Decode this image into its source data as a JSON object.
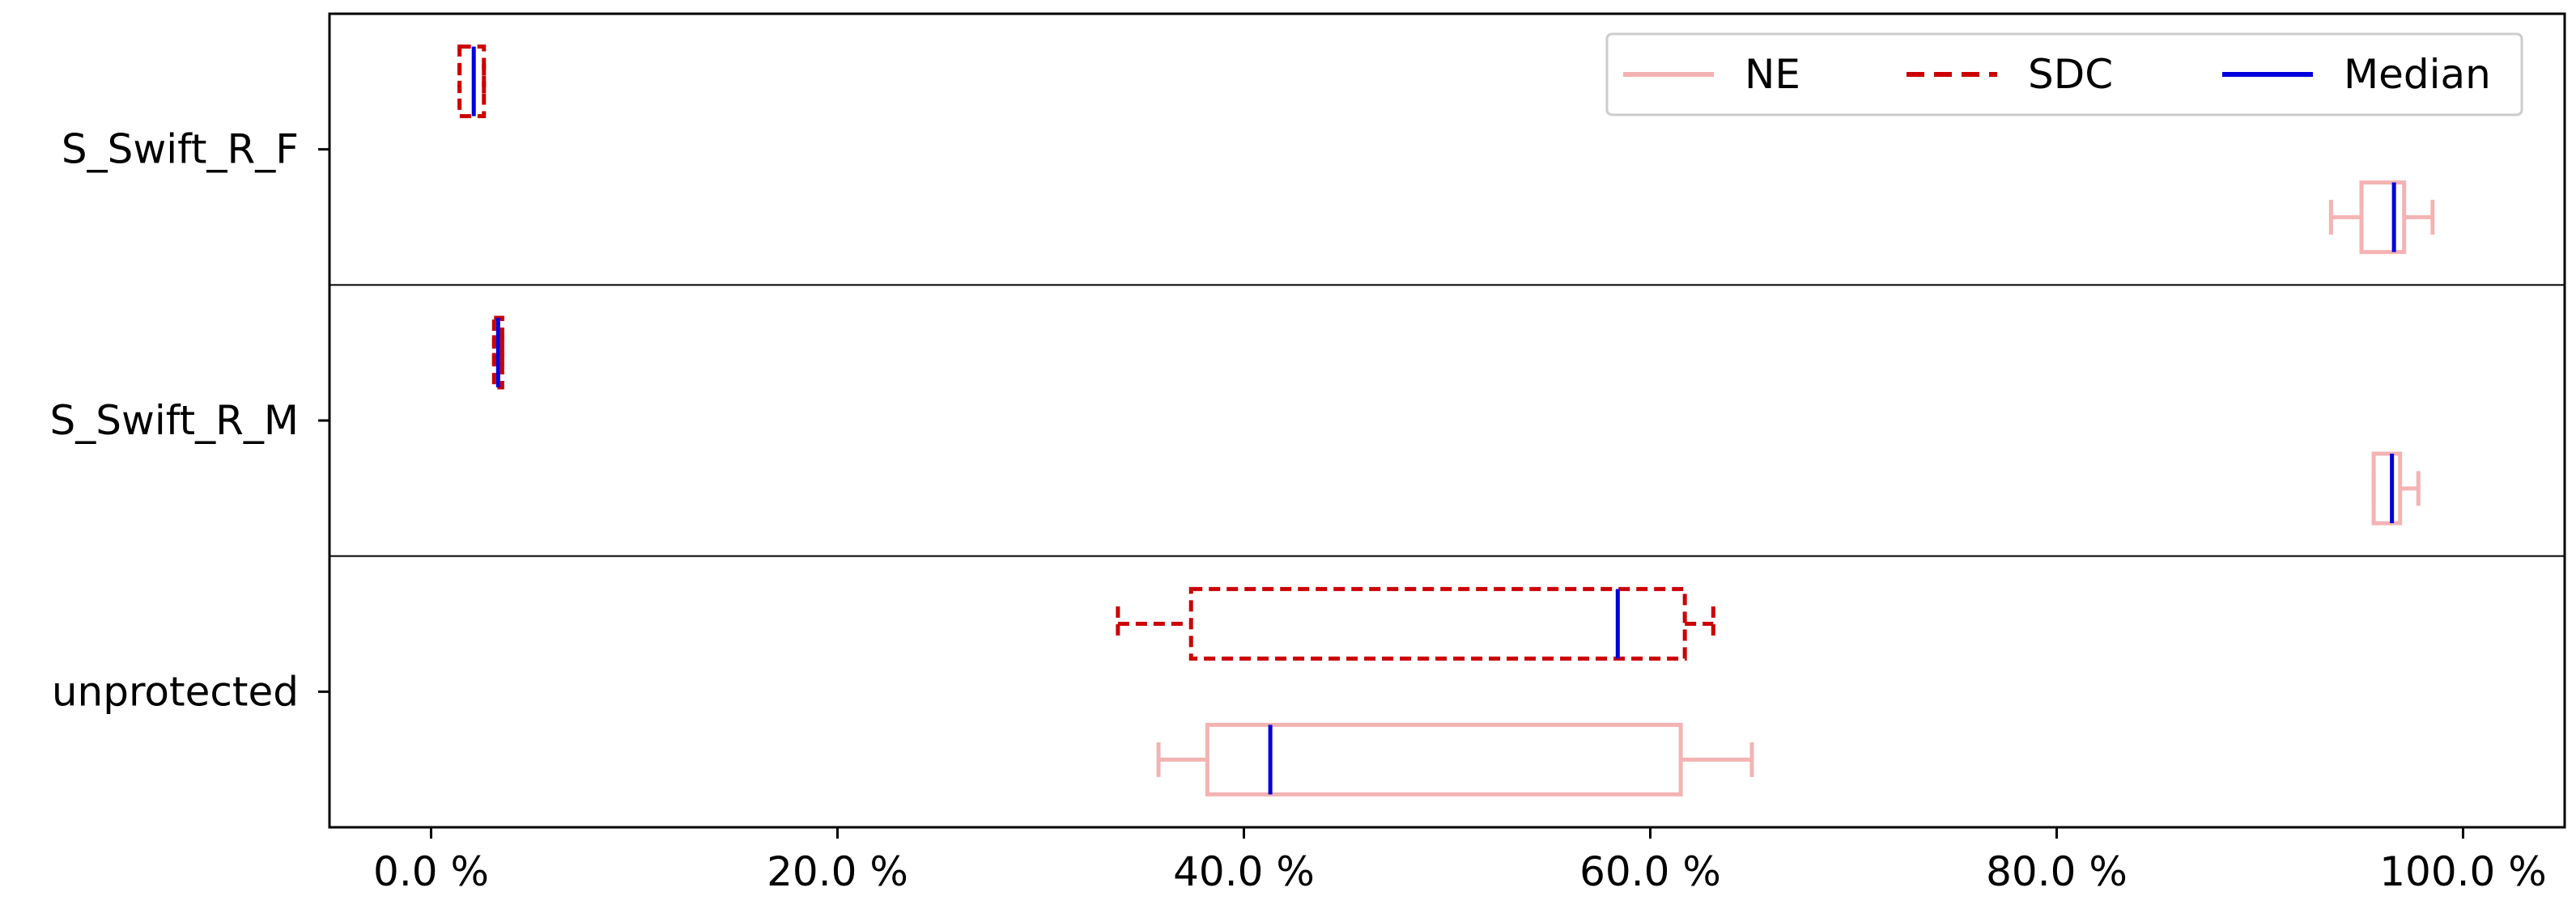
{
  "chart_data": {
    "type": "boxplot",
    "orientation": "horizontal",
    "title": "",
    "xlabel": "",
    "ylabel": "",
    "xlim": [
      -5,
      105
    ],
    "x_ticks": [
      0,
      20,
      40,
      60,
      80,
      100
    ],
    "x_tick_labels": [
      "0.0 %",
      "20.0 %",
      "40.0 %",
      "60.0 %",
      "80.0 %",
      "100.0 %"
    ],
    "categories": [
      "S_Swift_R_F",
      "S_Swift_R_M",
      "unprotected"
    ],
    "legend": {
      "position": "top-right",
      "entries": [
        {
          "label": "NE",
          "color": "#f4b3b3",
          "style": "solid"
        },
        {
          "label": "SDC",
          "color": "#cc0000",
          "style": "dashed"
        },
        {
          "label": "Median",
          "color": "#0000dd",
          "style": "solid"
        }
      ]
    },
    "series": [
      {
        "name": "NE",
        "color": "#f4b3b3",
        "style": "solid",
        "boxes": [
          {
            "category": "S_Swift_R_F",
            "whisker_low": 93.5,
            "q1": 95.0,
            "median": 96.6,
            "q3": 97.1,
            "whisker_high": 98.5
          },
          {
            "category": "S_Swift_R_M",
            "whisker_low": 95.6,
            "q1": 95.6,
            "median": 96.5,
            "q3": 96.9,
            "whisker_high": 97.8
          },
          {
            "category": "unprotected",
            "whisker_low": 35.8,
            "q1": 38.2,
            "median": 41.3,
            "q3": 61.5,
            "whisker_high": 65.0
          }
        ]
      },
      {
        "name": "SDC",
        "color": "#cc0000",
        "style": "dashed",
        "boxes": [
          {
            "category": "S_Swift_R_F",
            "whisker_low": 1.4,
            "q1": 1.4,
            "median": 2.1,
            "q3": 2.6,
            "whisker_high": 2.6
          },
          {
            "category": "S_Swift_R_M",
            "whisker_low": 3.1,
            "q1": 3.1,
            "median": 3.3,
            "q3": 3.5,
            "whisker_high": 3.5
          },
          {
            "category": "unprotected",
            "whisker_low": 33.8,
            "q1": 37.4,
            "median": 58.4,
            "q3": 61.7,
            "whisker_high": 63.1
          }
        ]
      }
    ],
    "median_color": "#0000dd",
    "grid": false
  }
}
